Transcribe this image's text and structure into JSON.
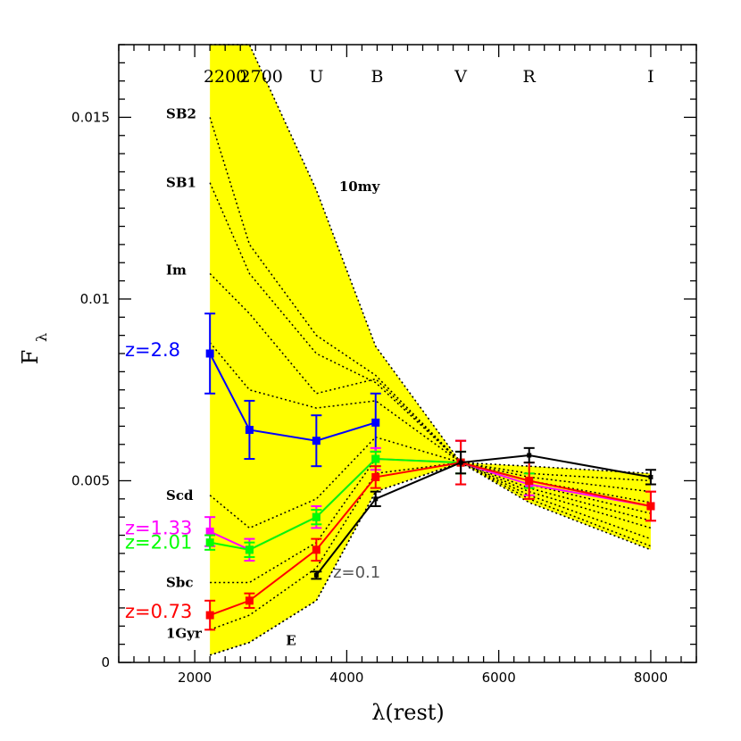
{
  "chart_data": {
    "type": "line",
    "xlabel": "λ(rest)",
    "ylabel": "F",
    "ylabel_sub": "λ",
    "xlim": [
      1000,
      8600
    ],
    "ylim": [
      0,
      0.017
    ],
    "x_ticks": [
      2000,
      4000,
      6000,
      8000
    ],
    "x_tick_labels": [
      "2000",
      "4000",
      "6000",
      "8000"
    ],
    "y_ticks": [
      0,
      0.005,
      0.01,
      0.015
    ],
    "y_tick_labels": [
      "0",
      "0.005",
      "0.01",
      "0.015"
    ],
    "bands": [
      {
        "label": "2200",
        "x": 2200
      },
      {
        "label": "2700",
        "x": 2700
      },
      {
        "label": "U",
        "x": 3600
      },
      {
        "label": "B",
        "x": 4400
      },
      {
        "label": "V",
        "x": 5500
      },
      {
        "label": "R",
        "x": 6400
      },
      {
        "label": "I",
        "x": 8000
      }
    ],
    "x_points": [
      2200,
      2720,
      3600,
      4380,
      5500,
      6400,
      8000
    ],
    "envelope": {
      "upper": [
        0.0172,
        0.0172,
        0.013,
        0.0087,
        0.0055,
        0.0054,
        0.0052
      ],
      "lower": [
        0.0002,
        0.00055,
        0.0017,
        0.0047,
        0.0055,
        0.0044,
        0.0031
      ],
      "color": "#ffff00"
    },
    "templates": [
      {
        "label": "SB2",
        "label_y": 0.0151,
        "values": [
          0.015,
          0.0115,
          0.009,
          0.0079,
          0.0055,
          0.0052,
          0.005
        ]
      },
      {
        "label": "SB1",
        "label_y": 0.0132,
        "values": [
          0.0132,
          0.0107,
          0.0085,
          0.0077,
          0.0055,
          0.0051,
          0.0047
        ]
      },
      {
        "label": "Im",
        "label_y": 0.0108,
        "values": [
          0.0107,
          0.0096,
          0.0074,
          0.0078,
          0.0055,
          0.005,
          0.0044
        ]
      },
      {
        "label": "",
        "label_y": null,
        "values": [
          0.0088,
          0.0075,
          0.007,
          0.0072,
          0.0055,
          0.0049,
          0.0041
        ]
      },
      {
        "label": "Scd",
        "label_y": 0.0046,
        "values": [
          0.0046,
          0.0037,
          0.0045,
          0.0062,
          0.0055,
          0.0048,
          0.0039
        ]
      },
      {
        "label": "Sbc",
        "label_y": 0.0022,
        "values": [
          0.0022,
          0.0022,
          0.0033,
          0.0056,
          0.0055,
          0.0047,
          0.0037
        ]
      },
      {
        "label": "1Gyr",
        "label_y": 0.0008,
        "values": [
          0.0009,
          0.0013,
          0.0026,
          0.0052,
          0.0055,
          0.0046,
          0.0034
        ]
      },
      {
        "label": "E",
        "label_y": null,
        "values": [
          0.0002,
          0.00055,
          0.0017,
          0.0047,
          0.0055,
          0.0045,
          0.0032
        ]
      }
    ],
    "template_label_E": {
      "text": "E",
      "x": 3200,
      "y": 0.0006
    },
    "annotation_10my": {
      "text": "10my",
      "x": 3900,
      "y": 0.0131
    },
    "series": [
      {
        "name": "z=2.8",
        "color": "#0000ff",
        "label_y": 0.0086,
        "x": [
          2200,
          2720,
          3600,
          4380,
          5500,
          6400,
          8000
        ],
        "values": [
          0.0085,
          0.0064,
          0.0061,
          0.0066,
          null,
          null,
          null
        ],
        "errors": [
          0.0011,
          0.0008,
          0.0007,
          0.0008,
          null,
          null,
          null
        ],
        "extra_errbar_x": 5500,
        "extra_errbar_y": 0.0055,
        "extra_errbar_err": 0.0006
      },
      {
        "name": "z=1.33",
        "color": "#ff00ff",
        "label_y": 0.0037,
        "x": [
          2200,
          2720,
          3600,
          4380,
          5500,
          6400,
          8000
        ],
        "values": [
          0.0036,
          0.0031,
          0.004,
          0.0056,
          0.0055,
          0.0049,
          0.0043
        ],
        "errors": [
          0.0004,
          0.0003,
          0.0003,
          0.0003,
          0.0006,
          0.0003,
          0.0004
        ]
      },
      {
        "name": "z=2.01",
        "color": "#00ff00",
        "label_y": 0.0033,
        "x": [
          2200,
          2720,
          3600,
          4380,
          5500,
          6400,
          8000
        ],
        "values": [
          0.0033,
          0.0031,
          0.004,
          0.0056,
          0.0055,
          0.005,
          null
        ],
        "errors": [
          0.0002,
          0.0002,
          0.0002,
          0.0002,
          0.0003,
          0.0002,
          null
        ]
      },
      {
        "name": "z=0.73",
        "color": "#ff0000",
        "label_y": 0.0014,
        "x": [
          2200,
          2720,
          3600,
          4380,
          5500,
          6400,
          8000
        ],
        "values": [
          0.0013,
          0.0017,
          0.0031,
          0.0051,
          0.0055,
          0.005,
          0.0043
        ],
        "errors": [
          0.0004,
          0.0002,
          0.0003,
          0.0003,
          0.0006,
          0.0005,
          0.0004
        ]
      },
      {
        "name": "z=0.1",
        "color": "#000000",
        "label_color": "#555555",
        "x": [
          3600,
          4380,
          5500,
          6400,
          8000
        ],
        "values": [
          0.0024,
          0.0045,
          0.0055,
          0.0057,
          0.0051
        ],
        "errors": [
          0.0001,
          0.0002,
          0.0003,
          0.0002,
          0.0002
        ],
        "label_x": 3820,
        "label_y": 0.0025
      }
    ]
  }
}
